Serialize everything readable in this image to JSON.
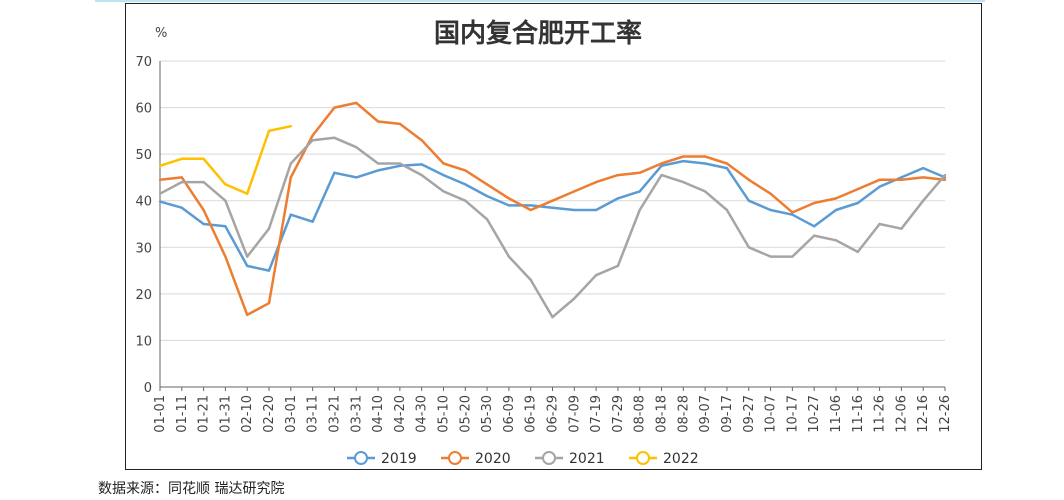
{
  "source_note": "数据来源：同花顺 瑞达研究院",
  "chart_data": {
    "type": "line",
    "title": "国内复合肥开工率",
    "ylabel": "%",
    "ylim": [
      0,
      70
    ],
    "yticks": [
      "0",
      "10",
      "20",
      "30",
      "40",
      "50",
      "60",
      "70"
    ],
    "grid": true,
    "legend_position": "bottom",
    "categories": [
      "01-01",
      "01-11",
      "01-21",
      "01-31",
      "02-10",
      "02-20",
      "03-01",
      "03-11",
      "03-21",
      "03-31",
      "04-10",
      "04-20",
      "04-30",
      "05-10",
      "05-20",
      "05-30",
      "06-09",
      "06-19",
      "06-29",
      "07-09",
      "07-19",
      "07-29",
      "08-08",
      "08-18",
      "08-28",
      "09-07",
      "09-17",
      "09-27",
      "10-07",
      "10-17",
      "10-27",
      "11-06",
      "11-16",
      "11-26",
      "12-06",
      "12-16",
      "12-26"
    ],
    "series": [
      {
        "name": "2019",
        "color": "#5b9bd5",
        "values": [
          39.8,
          38.5,
          35,
          34.5,
          26,
          25,
          37,
          35.5,
          46,
          45,
          46.5,
          47.5,
          47.8,
          45.5,
          43.5,
          41,
          39,
          39,
          38.5,
          38,
          38,
          40.5,
          42,
          47.5,
          48.5,
          48,
          47,
          40,
          38,
          37,
          34.5,
          38,
          39.5,
          43,
          45,
          47,
          45
        ]
      },
      {
        "name": "2020",
        "color": "#ed7d31",
        "values": [
          44.5,
          45,
          38,
          28,
          15.5,
          18,
          45,
          54,
          60,
          61,
          57,
          56.5,
          53,
          48,
          46.5,
          43.5,
          40.5,
          38,
          40,
          42,
          44,
          45.5,
          46,
          48,
          49.5,
          49.5,
          48,
          44.5,
          41.5,
          37.5,
          39.5,
          40.5,
          42.5,
          44.5,
          44.5,
          45,
          44.5
        ]
      },
      {
        "name": "2021",
        "color": "#a5a5a5",
        "values": [
          41.5,
          44,
          44,
          40,
          28,
          34,
          48,
          53,
          53.5,
          51.5,
          48,
          48,
          45.5,
          42,
          40,
          36,
          28,
          23,
          15,
          19,
          24,
          26,
          38,
          45.5,
          44,
          42,
          38,
          30,
          28,
          28,
          32.5,
          31.5,
          29,
          35,
          34,
          40,
          45.5
        ]
      },
      {
        "name": "2022",
        "color": "#ffc000",
        "values": [
          47.5,
          49,
          49,
          43.5,
          41.5,
          55,
          56,
          null,
          null,
          null,
          null,
          null,
          null,
          null,
          null,
          null,
          null,
          null,
          null,
          null,
          null,
          null,
          null,
          null,
          null,
          null,
          null,
          null,
          null,
          null,
          null,
          null,
          null,
          null,
          null,
          null,
          null
        ]
      }
    ]
  }
}
